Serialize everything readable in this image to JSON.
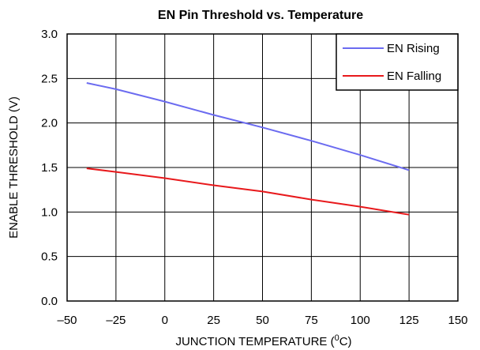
{
  "chart_data": {
    "type": "line",
    "title": "EN Pin Threshold vs. Temperature",
    "xlabel_main": "JUNCTION TEMPERATURE (",
    "xlabel_sup": "0",
    "xlabel_tail": "C)",
    "ylabel": "ENABLE THRESHOLD (V)",
    "xlim": [
      -50,
      150
    ],
    "ylim": [
      0.0,
      3.0
    ],
    "x_ticks": [
      -50,
      -25,
      0,
      25,
      50,
      75,
      100,
      125,
      150
    ],
    "x_tick_labels": [
      "–50",
      "–25",
      "0",
      "25",
      "50",
      "75",
      "100",
      "125",
      "150"
    ],
    "y_ticks": [
      0.0,
      0.5,
      1.0,
      1.5,
      2.0,
      2.5,
      3.0
    ],
    "y_tick_labels": [
      "0.0",
      "0.5",
      "1.0",
      "1.5",
      "2.0",
      "2.5",
      "3.0"
    ],
    "grid": true,
    "legend_position": "top-right",
    "series": [
      {
        "name": "EN Rising",
        "color": "#6b6bf0",
        "x": [
          -40,
          -25,
          0,
          25,
          50,
          75,
          100,
          125
        ],
        "y": [
          2.45,
          2.38,
          2.24,
          2.09,
          1.95,
          1.8,
          1.64,
          1.47
        ]
      },
      {
        "name": "EN Falling",
        "color": "#e8191c",
        "x": [
          -40,
          -25,
          0,
          25,
          50,
          75,
          100,
          125
        ],
        "y": [
          1.49,
          1.45,
          1.38,
          1.3,
          1.23,
          1.14,
          1.06,
          0.97
        ]
      }
    ]
  }
}
